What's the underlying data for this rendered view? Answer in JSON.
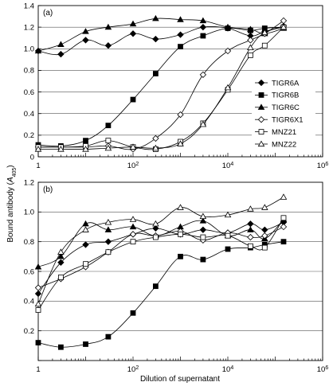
{
  "chart_data": {
    "type": "line",
    "xlabel": "Dilution of supernatant",
    "ylabel": "Bound antibody (A405)",
    "ylabel_parts": {
      "main": "Bound antibody (",
      "var": "A",
      "sub": "405",
      "close": ")"
    },
    "x_scale": "log10",
    "xlim": [
      1,
      1000000
    ],
    "x_ticks": [
      {
        "value": 1,
        "base": "1",
        "exp": ""
      },
      {
        "value": 100,
        "base": "10",
        "exp": "2"
      },
      {
        "value": 10000,
        "base": "10",
        "exp": "4"
      },
      {
        "value": 1000000,
        "base": "10",
        "exp": "6"
      }
    ],
    "x": [
      1,
      3,
      10,
      30,
      100,
      300,
      1000,
      3000,
      10000,
      30000,
      60000,
      150000
    ],
    "legend": {
      "position": "right",
      "series": [
        "TIGR6A",
        "TIGR6B",
        "TIGR6C",
        "TIGR6X1",
        "MNZ21",
        "MNZ22"
      ]
    },
    "panels": [
      {
        "label": "(a)",
        "ylim": [
          0,
          1.4
        ],
        "y_ticks": [
          "0",
          "0.2",
          "0.4",
          "0.6",
          "0.8",
          "1.0",
          "1.2",
          "1.4"
        ],
        "gridlines": [
          0.2,
          0.4,
          0.6,
          0.8,
          1.0,
          1.2
        ],
        "series": [
          {
            "name": "TIGR6A",
            "marker": "diamond-filled",
            "values": [
              0.98,
              0.95,
              1.08,
              1.03,
              1.14,
              1.09,
              1.13,
              1.2,
              1.19,
              1.12,
              1.16,
              1.21
            ]
          },
          {
            "name": "TIGR6B",
            "marker": "square-filled",
            "values": [
              0.11,
              0.1,
              0.15,
              0.29,
              0.53,
              0.77,
              1.02,
              1.12,
              1.19,
              1.17,
              1.19,
              1.2
            ]
          },
          {
            "name": "TIGR6C",
            "marker": "triangle-filled",
            "values": [
              0.98,
              1.04,
              1.16,
              1.2,
              1.23,
              1.28,
              1.27,
              1.26,
              1.2,
              1.18,
              1.14,
              1.19
            ]
          },
          {
            "name": "TIGR6X1",
            "marker": "diamond-open",
            "values": [
              0.09,
              0.09,
              0.09,
              0.1,
              0.07,
              0.17,
              0.39,
              0.76,
              0.98,
              1.08,
              1.14,
              1.26
            ]
          },
          {
            "name": "MNZ21",
            "marker": "square-open",
            "values": [
              0.09,
              0.09,
              0.1,
              0.15,
              0.09,
              0.07,
              0.14,
              0.31,
              0.62,
              0.94,
              1.03,
              1.2
            ]
          },
          {
            "name": "MNZ22",
            "marker": "triangle-open",
            "values": [
              0.07,
              0.07,
              0.07,
              0.08,
              0.09,
              0.08,
              0.12,
              0.3,
              0.64,
              1.01,
              1.15,
              1.2
            ]
          }
        ]
      },
      {
        "label": "(b)",
        "ylim": [
          0,
          1.2
        ],
        "y_ticks": [
          "",
          "0.2",
          "0.4",
          "0.6",
          "0.8",
          "1.0",
          "1.2"
        ],
        "gridlines": [
          0.2,
          0.4,
          0.6,
          0.8,
          1.0
        ],
        "series": [
          {
            "name": "TIGR6A",
            "marker": "diamond-filled",
            "values": [
              0.45,
              0.66,
              0.78,
              0.8,
              0.85,
              0.89,
              0.85,
              0.88,
              0.86,
              0.92,
              0.88,
              0.93
            ]
          },
          {
            "name": "TIGR6B",
            "marker": "square-filled",
            "values": [
              0.12,
              0.09,
              0.11,
              0.16,
              0.32,
              0.5,
              0.7,
              0.68,
              0.75,
              0.76,
              0.78,
              0.8
            ]
          },
          {
            "name": "TIGR6C",
            "marker": "triangle-filled",
            "values": [
              0.63,
              0.7,
              0.92,
              0.88,
              0.9,
              0.84,
              0.9,
              0.94,
              0.84,
              0.88,
              0.82,
              0.95
            ]
          },
          {
            "name": "TIGR6X1",
            "marker": "diamond-open",
            "values": [
              0.49,
              0.55,
              0.63,
              0.73,
              0.85,
              0.84,
              0.87,
              0.81,
              0.86,
              0.83,
              0.84,
              0.9
            ]
          },
          {
            "name": "MNZ21",
            "marker": "square-open",
            "values": [
              0.34,
              0.56,
              0.65,
              0.73,
              0.8,
              0.83,
              0.85,
              0.83,
              0.84,
              0.77,
              0.76,
              0.96
            ]
          },
          {
            "name": "MNZ22",
            "marker": "triangle-open",
            "values": [
              0.38,
              0.73,
              0.88,
              0.93,
              0.95,
              0.92,
              1.03,
              0.97,
              0.98,
              1.02,
              1.03,
              1.1
            ]
          }
        ]
      }
    ]
  }
}
